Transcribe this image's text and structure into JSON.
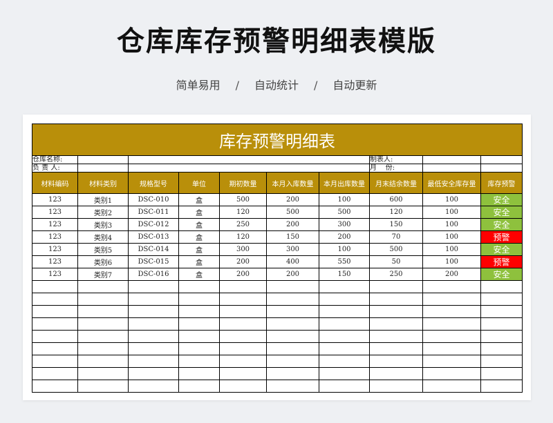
{
  "page": {
    "title": "仓库库存预警明细表模版",
    "tags": [
      "简单易用",
      "自动统计",
      "自动更新"
    ],
    "separator": "/"
  },
  "sheet": {
    "title": "库存预警明细表",
    "info": {
      "warehouse_label": "仓库名称:",
      "manager_label": "负 责 人:",
      "maker_label": "制表人:",
      "month_label": "月    份:"
    },
    "columns": [
      "材料编码",
      "材料类别",
      "规格型号",
      "单位",
      "期初数量",
      "本月入库数量",
      "本月出库数量",
      "月末结余数量",
      "最低安全库存量",
      "库存预警"
    ],
    "rows": [
      {
        "code": "123",
        "category": "类别1",
        "spec": "DSC-010",
        "unit": "盒",
        "opening": "500",
        "in": "200",
        "out": "100",
        "closing": "600",
        "min": "100",
        "status": "安全",
        "status_type": "safe"
      },
      {
        "code": "123",
        "category": "类别2",
        "spec": "DSC-011",
        "unit": "盒",
        "opening": "120",
        "in": "500",
        "out": "500",
        "closing": "120",
        "min": "100",
        "status": "安全",
        "status_type": "safe"
      },
      {
        "code": "123",
        "category": "类别3",
        "spec": "DSC-012",
        "unit": "盒",
        "opening": "250",
        "in": "200",
        "out": "300",
        "closing": "150",
        "min": "100",
        "status": "安全",
        "status_type": "safe"
      },
      {
        "code": "123",
        "category": "类别4",
        "spec": "DSC-013",
        "unit": "盒",
        "opening": "120",
        "in": "150",
        "out": "200",
        "closing": "70",
        "min": "100",
        "status": "预警",
        "status_type": "warn"
      },
      {
        "code": "123",
        "category": "类别5",
        "spec": "DSC-014",
        "unit": "盒",
        "opening": "300",
        "in": "300",
        "out": "100",
        "closing": "500",
        "min": "100",
        "status": "安全",
        "status_type": "safe"
      },
      {
        "code": "123",
        "category": "类别6",
        "spec": "DSC-015",
        "unit": "盒",
        "opening": "200",
        "in": "400",
        "out": "550",
        "closing": "50",
        "min": "100",
        "status": "预警",
        "status_type": "warn"
      },
      {
        "code": "123",
        "category": "类别7",
        "spec": "DSC-016",
        "unit": "盒",
        "opening": "200",
        "in": "200",
        "out": "150",
        "closing": "250",
        "min": "200",
        "status": "安全",
        "status_type": "safe"
      }
    ],
    "colors": {
      "header": "#b98f0a",
      "safe": "#8ec13d",
      "warn": "#ff0000"
    }
  }
}
